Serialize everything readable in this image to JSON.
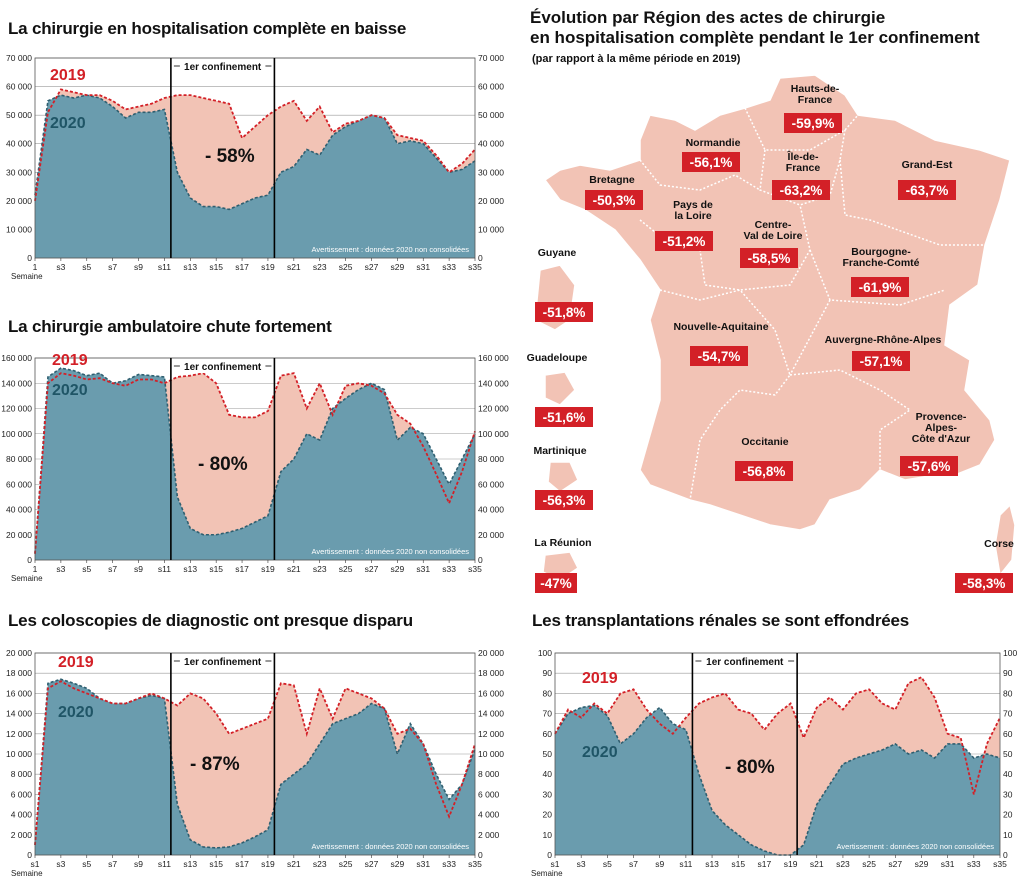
{
  "map": {
    "title_line1": "Évolution par Région des actes de chirurgie",
    "title_line2": "en hospitalisation complète pendant le 1er confinement",
    "subtitle": "(par rapport à la même période en 2019)",
    "regions": [
      {
        "name": "Hauts-de-France",
        "value": "-59,9%"
      },
      {
        "name": "Normandie",
        "value": "-56,1%"
      },
      {
        "name": "Île-de-France",
        "value": "-63,2%"
      },
      {
        "name": "Grand-Est",
        "value": "-63,7%"
      },
      {
        "name": "Bretagne",
        "value": "-50,3%"
      },
      {
        "name": "Pays de la Loire",
        "value": "-51,2%"
      },
      {
        "name": "Centre-Val de Loire",
        "value": "-58,5%"
      },
      {
        "name": "Bourgogne-Franche-Comté",
        "value": "-61,9%"
      },
      {
        "name": "Guyane",
        "value": "-51,8%"
      },
      {
        "name": "Nouvelle-Aquitaine",
        "value": "-54,7%"
      },
      {
        "name": "Auvergne-Rhône-Alpes",
        "value": "-57,1%"
      },
      {
        "name": "Guadeloupe",
        "value": "-51,6%"
      },
      {
        "name": "Martinique",
        "value": "-56,3%"
      },
      {
        "name": "Occitanie",
        "value": "-56,8%"
      },
      {
        "name": "Provence-Alpes-Côte d'Azur",
        "value": "-57,6%"
      },
      {
        "name": "La Réunion",
        "value": "-47%"
      },
      {
        "name": "Corse",
        "value": "-58,3%"
      }
    ],
    "colors": {
      "land": "#f2c3b5",
      "border": "#ffffff",
      "badge": "#d32027"
    }
  },
  "chart_data": [
    {
      "type": "area",
      "title": "La chirurgie en hospitalisation complète en baisse",
      "xlabel": "Semaine",
      "x": [
        1,
        2,
        3,
        4,
        5,
        6,
        7,
        8,
        9,
        10,
        11,
        12,
        13,
        14,
        15,
        16,
        17,
        18,
        19,
        20,
        21,
        22,
        23,
        24,
        25,
        26,
        27,
        28,
        29,
        30,
        31,
        32,
        33,
        34,
        35
      ],
      "x_tick_labels": [
        "1",
        "s3",
        "s5",
        "s7",
        "s9",
        "s11",
        "s13",
        "s15",
        "s17",
        "s19",
        "s21",
        "s23",
        "s25",
        "s27",
        "s29",
        "s31",
        "s33",
        "s35"
      ],
      "ylim": [
        0,
        70000
      ],
      "y_ticks": [
        0,
        10000,
        20000,
        30000,
        40000,
        50000,
        60000,
        70000
      ],
      "y_tick_labels": [
        "0",
        "10000",
        "20000",
        "30000",
        "40000",
        "50000",
        "60000",
        "70000"
      ],
      "series": [
        {
          "name": "2019",
          "values": [
            20000,
            51000,
            59000,
            58000,
            57000,
            57000,
            55000,
            52000,
            53000,
            54000,
            56000,
            57000,
            57000,
            56000,
            55000,
            54000,
            42000,
            46000,
            50000,
            53000,
            55000,
            48000,
            53000,
            44000,
            47000,
            48000,
            50000,
            49000,
            43000,
            42000,
            41000,
            36000,
            30000,
            33000,
            38000
          ]
        },
        {
          "name": "2020",
          "values": [
            22000,
            55000,
            57000,
            56000,
            57000,
            56000,
            53000,
            49000,
            51000,
            51000,
            52000,
            30000,
            21000,
            18000,
            18000,
            17000,
            19000,
            21000,
            22000,
            30000,
            32000,
            38000,
            36000,
            43000,
            46000,
            48000,
            50000,
            49000,
            40000,
            41000,
            40000,
            35000,
            30000,
            31000,
            34000
          ]
        }
      ],
      "annotations": {
        "lockdown_label": "1er confinement",
        "lockdown_start_week": 11.5,
        "lockdown_end_week": 19.5,
        "drop_label": "- 58%",
        "series_label_2019": "2019",
        "series_label_2020": "2020",
        "warning": "Avertissement : données 2020 non consolidées"
      },
      "colors": {
        "2019": "#d32027",
        "2020": "#6a9cae",
        "fill_2019": "#f2c3b5"
      }
    },
    {
      "type": "area",
      "title": "La chirurgie ambulatoire chute fortement",
      "xlabel": "Semaine",
      "x": [
        1,
        2,
        3,
        4,
        5,
        6,
        7,
        8,
        9,
        10,
        11,
        12,
        13,
        14,
        15,
        16,
        17,
        18,
        19,
        20,
        21,
        22,
        23,
        24,
        25,
        26,
        27,
        28,
        29,
        30,
        31,
        32,
        33,
        34,
        35
      ],
      "x_tick_labels": [
        "1",
        "s3",
        "s5",
        "s7",
        "s9",
        "s11",
        "s13",
        "s15",
        "s17",
        "s19",
        "s21",
        "s23",
        "s25",
        "s27",
        "s29",
        "s31",
        "s33",
        "s35"
      ],
      "ylim": [
        0,
        160000
      ],
      "y_ticks": [
        0,
        20000,
        40000,
        60000,
        80000,
        100000,
        120000,
        140000,
        160000
      ],
      "y_tick_labels": [
        "0",
        "20000",
        "40000",
        "60000",
        "80000",
        "100000",
        "120000",
        "140000",
        "160000"
      ],
      "series": [
        {
          "name": "2019",
          "values": [
            5000,
            140000,
            148000,
            146000,
            143000,
            144000,
            140000,
            138000,
            143000,
            143000,
            140000,
            145000,
            146000,
            148000,
            140000,
            115000,
            113000,
            113000,
            118000,
            146000,
            148000,
            120000,
            140000,
            115000,
            138000,
            140000,
            138000,
            132000,
            115000,
            108000,
            90000,
            68000,
            45000,
            70000,
            102000
          ]
        },
        {
          "name": "2020",
          "values": [
            5000,
            145000,
            152000,
            150000,
            146000,
            148000,
            140000,
            142000,
            147000,
            146000,
            145000,
            50000,
            25000,
            20000,
            20000,
            22000,
            25000,
            30000,
            35000,
            70000,
            80000,
            100000,
            95000,
            120000,
            128000,
            135000,
            140000,
            135000,
            95000,
            105000,
            100000,
            80000,
            60000,
            80000,
            100000
          ]
        }
      ],
      "annotations": {
        "lockdown_label": "1er confinement",
        "lockdown_start_week": 11.5,
        "lockdown_end_week": 19.5,
        "drop_label": "- 80%",
        "series_label_2019": "2019",
        "series_label_2020": "2020",
        "warning": "Avertissement : données 2020 non consolidées"
      },
      "colors": {
        "2019": "#d32027",
        "2020": "#6a9cae",
        "fill_2019": "#f2c3b5"
      }
    },
    {
      "type": "area",
      "title": "Les coloscopies de diagnostic ont presque disparu",
      "xlabel": "Semaine",
      "x": [
        1,
        2,
        3,
        4,
        5,
        6,
        7,
        8,
        9,
        10,
        11,
        12,
        13,
        14,
        15,
        16,
        17,
        18,
        19,
        20,
        21,
        22,
        23,
        24,
        25,
        26,
        27,
        28,
        29,
        30,
        31,
        32,
        33,
        34,
        35
      ],
      "x_tick_labels": [
        "s1",
        "s3",
        "s5",
        "s7",
        "s9",
        "s11",
        "s13",
        "s15",
        "s17",
        "s19",
        "s21",
        "s23",
        "s25",
        "s27",
        "s29",
        "s31",
        "s33",
        "s35"
      ],
      "ylim": [
        0,
        20000
      ],
      "y_ticks": [
        0,
        2000,
        4000,
        6000,
        8000,
        10000,
        12000,
        14000,
        16000,
        18000,
        20000
      ],
      "y_tick_labels": [
        "0",
        "2000",
        "4000",
        "6000",
        "8000",
        "10000",
        "12000",
        "14000",
        "16000",
        "18000",
        "20000"
      ],
      "series": [
        {
          "name": "2019",
          "values": [
            1000,
            16500,
            17200,
            16500,
            16000,
            15500,
            15000,
            15000,
            15500,
            16000,
            15500,
            14800,
            16000,
            15500,
            14000,
            12000,
            12500,
            13000,
            13500,
            17000,
            16800,
            12000,
            16500,
            13500,
            16500,
            16000,
            15500,
            14500,
            12000,
            12500,
            11000,
            7000,
            3800,
            7000,
            11000
          ]
        },
        {
          "name": "2020",
          "values": [
            1000,
            17000,
            17400,
            17000,
            16500,
            15500,
            15000,
            15000,
            15500,
            15800,
            15500,
            5000,
            1500,
            800,
            700,
            800,
            1200,
            1800,
            2500,
            7000,
            8000,
            9000,
            11000,
            13000,
            13500,
            14000,
            15000,
            14500,
            10000,
            13000,
            11000,
            8000,
            5500,
            7000,
            10500
          ]
        }
      ],
      "annotations": {
        "lockdown_label": "1er confinement",
        "lockdown_start_week": 11.5,
        "lockdown_end_week": 19.5,
        "drop_label": "- 87%",
        "series_label_2019": "2019",
        "series_label_2020": "2020",
        "warning": "Avertissement : données 2020 non consolidées"
      },
      "colors": {
        "2019": "#d32027",
        "2020": "#6a9cae",
        "fill_2019": "#f2c3b5"
      }
    },
    {
      "type": "area",
      "title": "Les transplantations rénales se sont effondrées",
      "xlabel": "Semaine",
      "x": [
        1,
        2,
        3,
        4,
        5,
        6,
        7,
        8,
        9,
        10,
        11,
        12,
        13,
        14,
        15,
        16,
        17,
        18,
        19,
        20,
        21,
        22,
        23,
        24,
        25,
        26,
        27,
        28,
        29,
        30,
        31,
        32,
        33,
        34,
        35
      ],
      "x_tick_labels": [
        "s1",
        "s3",
        "s5",
        "s7",
        "s9",
        "s11",
        "s13",
        "s15",
        "s17",
        "s19",
        "s21",
        "s23",
        "s25",
        "s27",
        "s29",
        "s31",
        "s33",
        "s35"
      ],
      "ylim": [
        0,
        100
      ],
      "y_ticks": [
        0,
        10,
        20,
        30,
        40,
        50,
        60,
        70,
        80,
        90,
        100
      ],
      "y_tick_labels": [
        "0",
        "10",
        "20",
        "30",
        "40",
        "50",
        "60",
        "70",
        "80",
        "90",
        "100"
      ],
      "series": [
        {
          "name": "2019",
          "values": [
            60,
            72,
            68,
            75,
            70,
            80,
            82,
            72,
            65,
            60,
            68,
            75,
            78,
            80,
            72,
            70,
            62,
            70,
            75,
            58,
            73,
            78,
            72,
            80,
            82,
            75,
            72,
            85,
            88,
            78,
            60,
            58,
            30,
            55,
            68
          ]
        },
        {
          "name": "2020",
          "values": [
            60,
            70,
            73,
            74,
            69,
            55,
            60,
            68,
            73,
            65,
            62,
            40,
            22,
            15,
            10,
            5,
            2,
            0,
            0,
            5,
            25,
            35,
            45,
            48,
            50,
            52,
            55,
            50,
            52,
            48,
            55,
            55,
            48,
            50,
            48
          ]
        }
      ],
      "annotations": {
        "lockdown_label": "1er confinement",
        "lockdown_start_week": 11.5,
        "lockdown_end_week": 19.5,
        "drop_label": "- 80%",
        "series_label_2019": "2019",
        "series_label_2020": "2020",
        "warning": "Avertissement : données 2020 non consolidées"
      },
      "colors": {
        "2019": "#d32027",
        "2020": "#6a9cae",
        "fill_2019": "#f2c3b5"
      }
    }
  ]
}
